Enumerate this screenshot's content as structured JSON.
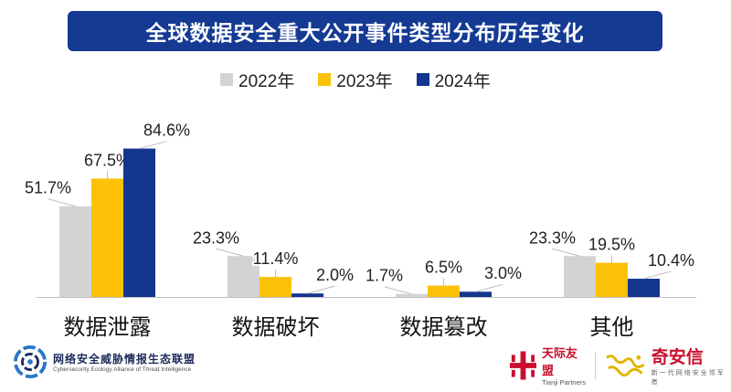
{
  "title": "全球数据安全重大公开事件类型分布历年变化",
  "colors": {
    "banner": "#143a93",
    "s2022": "#d3d3d3",
    "s2023": "#fbc109",
    "s2024": "#14368f"
  },
  "chart_data": {
    "type": "bar",
    "categories": [
      "数据泄露",
      "数据破坏",
      "数据篡改",
      "其他"
    ],
    "series": [
      {
        "name": "2022年",
        "values": [
          51.7,
          23.3,
          1.7,
          23.3
        ],
        "labels": [
          "51.7%",
          "23.3%",
          "1.7%",
          "23.3%"
        ],
        "color": "#d3d3d3"
      },
      {
        "name": "2023年",
        "values": [
          67.5,
          11.4,
          6.5,
          19.5
        ],
        "labels": [
          "67.5%",
          "11.4%",
          "6.5%",
          "19.5%"
        ],
        "color": "#fbc109"
      },
      {
        "name": "2024年",
        "values": [
          84.6,
          2.0,
          3.0,
          10.4
        ],
        "labels": [
          "84.6%",
          "2.0%",
          "3.0%",
          "10.4%"
        ],
        "color": "#14368f"
      }
    ],
    "ylim": [
      0,
      100
    ],
    "legend_position": "top-center",
    "grid": false,
    "xlabel": "",
    "ylabel": ""
  },
  "footer": {
    "org_name": "网络安全威胁情报生态联盟",
    "org_sub": "Cybersecurity  Ecology Alliance of Threat Intelligence",
    "tianji_name": "天际友盟",
    "tianji_en": "Tianji Partners",
    "qax_name": "奇安信",
    "qax_slogan": "新一代网络安全领军者"
  }
}
